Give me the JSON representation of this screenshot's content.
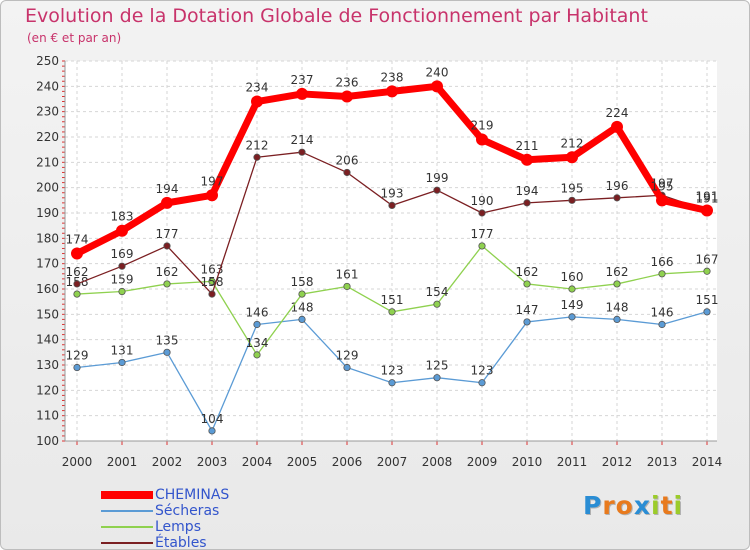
{
  "title": "Evolution de la Dotation Globale de Fonctionnement par Habitant",
  "subtitle": "(en € et par an)",
  "logo": {
    "letters": [
      "P",
      "r",
      "o",
      "x",
      "i",
      "t",
      "i"
    ],
    "colors": [
      "#2a8dd4",
      "#e87a1d",
      "#e87a1d",
      "#2a8dd4",
      "#9ccc2a",
      "#e87a1d",
      "#9ccc2a"
    ]
  },
  "chart_data": {
    "type": "line",
    "title": "Evolution de la Dotation Globale de Fonctionnement par Habitant",
    "subtitle": "(en € et par an)",
    "xlabel": "",
    "ylabel": "",
    "ylim": [
      100,
      250
    ],
    "yticks": [
      "100",
      "110",
      "120",
      "130",
      "140",
      "150",
      "160",
      "170",
      "180",
      "190",
      "200",
      "210",
      "220",
      "230",
      "240",
      "250"
    ],
    "categories": [
      "2000",
      "2001",
      "2002",
      "2003",
      "2004",
      "2005",
      "2006",
      "2007",
      "2008",
      "2009",
      "2010",
      "2011",
      "2012",
      "2013",
      "2014"
    ],
    "grid": true,
    "legend_position": "bottom-left",
    "series": [
      {
        "name": "CHEMINAS",
        "color": "#ff0000",
        "values": [
          174,
          183,
          194,
          197,
          234,
          237,
          236,
          238,
          240,
          219,
          211,
          212,
          224,
          195,
          191
        ]
      },
      {
        "name": "Sécheras",
        "color": "#5b9bd5",
        "values": [
          129,
          131,
          135,
          104,
          146,
          148,
          129,
          123,
          125,
          123,
          147,
          149,
          148,
          146,
          151
        ]
      },
      {
        "name": "Lemps",
        "color": "#8fd14f",
        "values": [
          158,
          159,
          162,
          163,
          134,
          158,
          161,
          151,
          154,
          177,
          162,
          160,
          162,
          166,
          167
        ]
      },
      {
        "name": "Étables",
        "color": "#7b1f22",
        "values": [
          162,
          169,
          177,
          158,
          212,
          214,
          206,
          193,
          199,
          190,
          194,
          195,
          196,
          197,
          191
        ]
      }
    ]
  }
}
